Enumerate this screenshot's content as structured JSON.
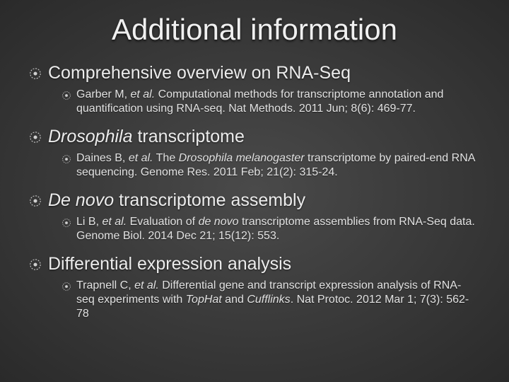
{
  "title": "Additional information",
  "colors": {
    "background_center": "#4a4a4a",
    "background_edge": "#2a2a2a",
    "text": "#e8e8e8",
    "bullet": "#d8d8d8"
  },
  "typography": {
    "title_fontsize": 42,
    "section_fontsize": 25,
    "ref_fontsize": 16,
    "font_family": "Arial"
  },
  "sections": [
    {
      "heading_plain": "Comprehensive overview on RNA-Seq",
      "heading_italic_words": [],
      "reference": {
        "authors": "Garber M,",
        "etal": "et al.",
        "body": " Computational methods for transcriptome annotation and quantification using RNA-seq. Nat Methods. 2011 Jun; 8(6): 469-77."
      }
    },
    {
      "heading_plain": "Drosophila transcriptome",
      "heading_italic_words": [
        "Drosophila"
      ],
      "reference": {
        "authors": "Daines B,",
        "etal": "et al.",
        "body_pre": " The ",
        "body_ital": "Drosophila melanogaster",
        "body_post": " transcriptome by paired-end RNA sequencing. Genome Res. 2011 Feb; 21(2): 315-24."
      }
    },
    {
      "heading_plain": "De novo transcriptome assembly",
      "heading_italic_words": [
        "De",
        "novo"
      ],
      "reference": {
        "authors": "Li B,",
        "etal": "et al.",
        "body_pre": " Evaluation of ",
        "body_ital": "de novo",
        "body_post": " transcriptome assemblies from RNA-Seq data. Genome Biol. 2014 Dec 21; 15(12): 553."
      }
    },
    {
      "heading_plain": "Differential expression analysis",
      "heading_italic_words": [],
      "reference": {
        "authors": "Trapnell C,",
        "etal": "et al.",
        "body_pre": " Differential gene and transcript expression analysis of RNA-seq experiments with ",
        "body_ital": "TopHat",
        "body_mid": " and ",
        "body_ital2": "Cufflinks",
        "body_post": ". Nat Protoc. 2012 Mar 1; 7(3): 562-78"
      }
    }
  ]
}
